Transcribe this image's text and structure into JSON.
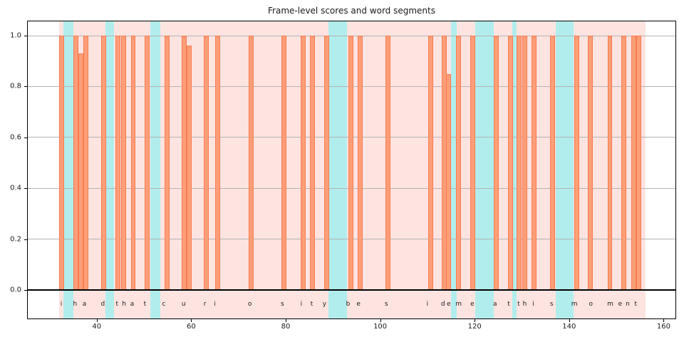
{
  "chart_data": {
    "type": "bar",
    "title": "Frame-level scores and word segments",
    "xlabel": "",
    "ylabel": "",
    "xlim": [
      25.4,
      162.5
    ],
    "ylim": [
      -0.111,
      1.056
    ],
    "grid": "horizontal-gridlines-on",
    "legend": "none",
    "x_ticks": [
      40,
      60,
      80,
      100,
      120,
      140,
      160
    ],
    "x_tick_labels": [
      "40",
      "60",
      "80",
      "100",
      "120",
      "140",
      "160"
    ],
    "y_ticks": [
      0.0,
      0.2,
      0.4,
      0.6,
      0.8,
      1.0
    ],
    "y_tick_labels": [
      "0.0",
      "0.2",
      "0.4",
      "0.6",
      "0.8",
      "1.0"
    ],
    "baseline_y": 0.0,
    "speech_region_span": {
      "start": 32.0,
      "end": 156.2
    },
    "word_gap_spans": [
      {
        "start": 33.0,
        "end": 35.0
      },
      {
        "start": 41.8,
        "end": 43.7
      },
      {
        "start": 51.3,
        "end": 53.5
      },
      {
        "start": 89.1,
        "end": 92.9
      },
      {
        "start": 115.0,
        "end": 116.2
      },
      {
        "start": 120.1,
        "end": 124.1
      },
      {
        "start": 127.9,
        "end": 128.8
      },
      {
        "start": 137.1,
        "end": 140.9
      }
    ],
    "bar_width": 1.05,
    "bars": [
      {
        "x": 32.0,
        "score": 1.0
      },
      {
        "x": 35.0,
        "score": 1.0
      },
      {
        "x": 36.1,
        "score": 0.93
      },
      {
        "x": 37.2,
        "score": 1.0
      },
      {
        "x": 41.0,
        "score": 1.0
      },
      {
        "x": 44.0,
        "score": 1.0
      },
      {
        "x": 45.2,
        "score": 1.0
      },
      {
        "x": 47.2,
        "score": 1.0
      },
      {
        "x": 50.2,
        "score": 1.0
      },
      {
        "x": 54.3,
        "score": 1.0
      },
      {
        "x": 58.0,
        "score": 1.0
      },
      {
        "x": 59.1,
        "score": 0.96
      },
      {
        "x": 62.7,
        "score": 1.0
      },
      {
        "x": 65.0,
        "score": 1.0
      },
      {
        "x": 72.1,
        "score": 1.0
      },
      {
        "x": 79.1,
        "score": 1.0
      },
      {
        "x": 83.1,
        "score": 1.0
      },
      {
        "x": 85.2,
        "score": 1.0
      },
      {
        "x": 88.1,
        "score": 1.0
      },
      {
        "x": 93.3,
        "score": 1.0
      },
      {
        "x": 95.3,
        "score": 1.0
      },
      {
        "x": 101.1,
        "score": 1.0
      },
      {
        "x": 110.2,
        "score": 1.0
      },
      {
        "x": 113.0,
        "score": 1.0
      },
      {
        "x": 114.0,
        "score": 0.85
      },
      {
        "x": 116.0,
        "score": 1.0
      },
      {
        "x": 119.0,
        "score": 1.0
      },
      {
        "x": 124.1,
        "score": 1.0
      },
      {
        "x": 127.0,
        "score": 1.0
      },
      {
        "x": 128.9,
        "score": 1.0
      },
      {
        "x": 130.1,
        "score": 1.0
      },
      {
        "x": 132.0,
        "score": 1.0
      },
      {
        "x": 136.0,
        "score": 1.0
      },
      {
        "x": 141.1,
        "score": 1.0
      },
      {
        "x": 144.0,
        "score": 1.0
      },
      {
        "x": 148.1,
        "score": 1.0
      },
      {
        "x": 151.1,
        "score": 1.0
      },
      {
        "x": 153.1,
        "score": 1.0
      },
      {
        "x": 154.2,
        "score": 1.0
      }
    ],
    "letter_annotations_y": -0.055,
    "letter_annotations": [
      {
        "ch": "i",
        "x": 32.5
      },
      {
        "ch": "h",
        "x": 35.4
      },
      {
        "ch": "a",
        "x": 37.4
      },
      {
        "ch": "d",
        "x": 41.3
      },
      {
        "ch": "t",
        "x": 44.3
      },
      {
        "ch": "h",
        "x": 45.8
      },
      {
        "ch": "a",
        "x": 47.5
      },
      {
        "ch": "t",
        "x": 50.2
      },
      {
        "ch": "c",
        "x": 54.2
      },
      {
        "ch": "u",
        "x": 58.4
      },
      {
        "ch": "r",
        "x": 62.9
      },
      {
        "ch": "i",
        "x": 65.0
      },
      {
        "ch": "o",
        "x": 72.4
      },
      {
        "ch": "s",
        "x": 79.3
      },
      {
        "ch": "i",
        "x": 83.3
      },
      {
        "ch": "t",
        "x": 85.5
      },
      {
        "ch": "y",
        "x": 88.2
      },
      {
        "ch": "b",
        "x": 93.2
      },
      {
        "ch": "e",
        "x": 95.4
      },
      {
        "ch": "s",
        "x": 101.3
      },
      {
        "ch": "i",
        "x": 110.0
      },
      {
        "ch": "d",
        "x": 113.3
      },
      {
        "ch": "e",
        "x": 114.5
      },
      {
        "ch": "m",
        "x": 116.6
      },
      {
        "ch": "e",
        "x": 119.5
      },
      {
        "ch": "a",
        "x": 124.3
      },
      {
        "ch": "t",
        "x": 127.2
      },
      {
        "ch": "t",
        "x": 129.3
      },
      {
        "ch": "h",
        "x": 130.6
      },
      {
        "ch": "i",
        "x": 132.4
      },
      {
        "ch": "s",
        "x": 136.3
      },
      {
        "ch": "m",
        "x": 141.1
      },
      {
        "ch": "o",
        "x": 144.6
      },
      {
        "ch": "m",
        "x": 148.7
      },
      {
        "ch": "e",
        "x": 150.8
      },
      {
        "ch": "n",
        "x": 152.4
      },
      {
        "ch": "t",
        "x": 154.1
      }
    ],
    "colors": {
      "bar_fill": "#fc9e78",
      "bar_edge": "#f97c50",
      "speech_region_fill": "#fde4e1",
      "word_gap_fill": "#b2eded",
      "grid_line": "#b3b3b3",
      "baseline": "#000000",
      "spine": "#000000",
      "text": "#1a1a1a"
    }
  }
}
